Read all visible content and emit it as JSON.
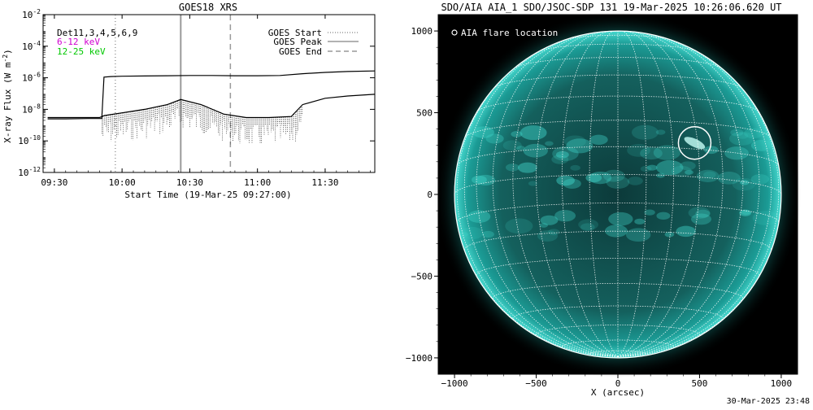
{
  "left_panel": {
    "title": "GOES18 XRS",
    "det_label": "Det11,3,4,5,6,9",
    "band_low_label": "6-12 keV",
    "band_high_label": "12-25 keV",
    "legend_start": "GOES Start",
    "legend_peak": "GOES Peak",
    "legend_end": "GOES End",
    "ylabel": "X-ray Flux (W m",
    "ylabel_exp": "-2",
    "ylabel_tail": ")",
    "xlabel": "Start Time (19-Mar-25 09:27:00)",
    "colors": {
      "band_low": "#d100d1",
      "band_high": "#00c800",
      "axes": "#000000"
    }
  },
  "right_panel": {
    "title": "SDO/AIA AIA_1 SDO/JSOC-SDP 131 19-Mar-2025 10:26:06.620 UT",
    "legend": "AIA flare location",
    "xlabel": "X (arcsec)",
    "footer_timestamp": "30-Mar-2025 23:48",
    "colors": {
      "disk": "#1aa7a0",
      "background": "#000000",
      "grid": "#ffffff"
    }
  },
  "chart_data": [
    {
      "type": "line",
      "title": "GOES18 XRS",
      "xlabel": "Start Time (19-Mar-25 09:27:00)",
      "ylabel": "X-ray Flux (W m^-2)",
      "yscale": "log",
      "xlim": [
        "09:25",
        "11:52"
      ],
      "ylim": [
        1e-12,
        0.01
      ],
      "x_ticks": [
        "09:30",
        "10:00",
        "10:30",
        "11:00",
        "11:30"
      ],
      "y_ticks": [
        {
          "mantissa": "10",
          "exp": "-12",
          "value": 1e-12
        },
        {
          "mantissa": "10",
          "exp": "-10",
          "value": 1e-10
        },
        {
          "mantissa": "10",
          "exp": "-8",
          "value": 1e-08
        },
        {
          "mantissa": "10",
          "exp": "-6",
          "value": 1e-06
        },
        {
          "mantissa": "10",
          "exp": "-4",
          "value": 0.0001
        },
        {
          "mantissa": "10",
          "exp": "-2",
          "value": 0.01
        }
      ],
      "events": {
        "start": "09:57",
        "peak": "10:26",
        "end": "10:48"
      },
      "series": [
        {
          "x": [
            "09:27",
            "09:35",
            "09:45",
            "09:51",
            "09:52",
            "09:55",
            "10:00",
            "10:10",
            "10:20",
            "10:30",
            "10:40",
            "10:50",
            "11:00",
            "11:10",
            "11:20",
            "11:30",
            "11:40",
            "11:52"
          ],
          "y": [
            2.5e-09,
            2.5e-09,
            2.6e-09,
            2.6e-09,
            1.1e-06,
            1.2e-06,
            1.25e-06,
            1.3e-06,
            1.35e-06,
            1.4e-06,
            1.4e-06,
            1.35e-06,
            1.35e-06,
            1.4e-06,
            1.8e-06,
            2.2e-06,
            2.5e-06,
            2.7e-06
          ]
        },
        {
          "x": [
            "09:27",
            "09:40",
            "09:50",
            "09:52",
            "10:00",
            "10:10",
            "10:20",
            "10:26",
            "10:35",
            "10:45",
            "10:55",
            "11:05",
            "11:15",
            "11:20",
            "11:30",
            "11:40",
            "11:52"
          ],
          "y": [
            3e-09,
            3e-09,
            3e-09,
            4e-09,
            6e-09,
            1e-08,
            2e-08,
            4.2e-08,
            2e-08,
            5e-09,
            3e-09,
            3e-09,
            3.5e-09,
            2e-08,
            5e-08,
            7e-08,
            9e-08
          ]
        }
      ],
      "grid": false
    },
    {
      "type": "scatter",
      "title": "SDO/AIA AIA_1 SDO/JSOC-SDP 131 19-Mar-2025 10:26:06.620 UT",
      "xlabel": "X (arcsec)",
      "ylabel": "",
      "xlim": [
        -1100,
        1100
      ],
      "ylim": [
        -1100,
        1100
      ],
      "x_ticks": [
        -1000,
        -500,
        0,
        500,
        1000
      ],
      "y_ticks": [
        -1000,
        -500,
        0,
        500,
        1000
      ],
      "solar_radius": 1000,
      "flare_location": {
        "x": 470,
        "y": 315
      },
      "grid": true
    }
  ]
}
